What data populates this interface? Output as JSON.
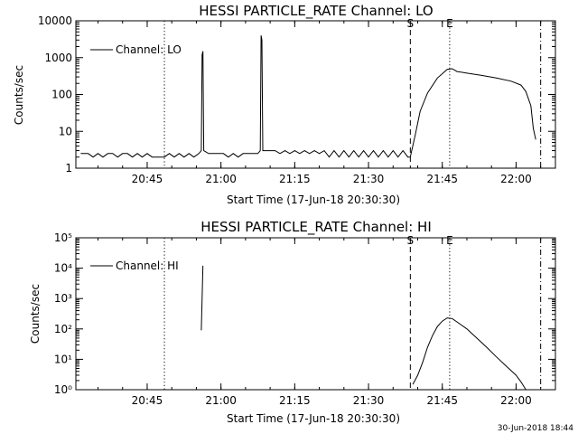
{
  "chart_data": [
    {
      "type": "line",
      "title": "HESSI PARTICLE_RATE Channel: LO",
      "xlabel": "Start Time (17-Jun-18 20:30:30)",
      "ylabel": "Counts/sec",
      "yscale": "log",
      "ylim": [
        1,
        10000
      ],
      "xlim": [
        "20:30:30",
        "22:08:00"
      ],
      "x_ticks": [
        "20:45",
        "21:00",
        "21:15",
        "21:30",
        "21:45",
        "22:00"
      ],
      "y_ticks": [
        "1",
        "10",
        "100",
        "1000",
        "10000"
      ],
      "legend": {
        "label": "Channel: LO",
        "position": "top-left"
      },
      "markers": [
        {
          "label": "",
          "time": "20:48:30",
          "style": "dotted"
        },
        {
          "label": "S",
          "time": "21:38:30",
          "style": "dashed"
        },
        {
          "label": "E",
          "time": "21:46:30",
          "style": "dotted"
        },
        {
          "label": "",
          "time": "22:05:00",
          "style": "dash-dot"
        }
      ],
      "series": [
        {
          "name": "Channel: LO",
          "points": [
            [
              "20:31:30",
              2.5
            ],
            [
              "20:33:00",
              2.5
            ],
            [
              "20:34:00",
              2
            ],
            [
              "20:35:00",
              2.5
            ],
            [
              "20:36:00",
              2
            ],
            [
              "20:37:00",
              2.5
            ],
            [
              "20:38:00",
              2.5
            ],
            [
              "20:39:00",
              2
            ],
            [
              "20:40:00",
              2.5
            ],
            [
              "20:41:00",
              2.5
            ],
            [
              "20:42:00",
              2
            ],
            [
              "20:43:00",
              2.5
            ],
            [
              "20:44:00",
              2
            ],
            [
              "20:45:00",
              2.5
            ],
            [
              "20:46:00",
              2
            ],
            [
              "20:47:00",
              2
            ],
            [
              "20:48:30",
              2
            ],
            [
              "20:49:30",
              2.5
            ],
            [
              "20:50:30",
              2
            ],
            [
              "20:51:30",
              2.5
            ],
            [
              "20:52:30",
              2
            ],
            [
              "20:53:30",
              2.5
            ],
            [
              "20:54:30",
              2
            ],
            [
              "20:55:30",
              2.5
            ],
            [
              "20:56:00",
              3
            ],
            [
              "20:56:10",
              1200
            ],
            [
              "20:56:20",
              1500
            ],
            [
              "20:56:30",
              3
            ],
            [
              "20:57:30",
              2.5
            ],
            [
              "20:58:30",
              2.5
            ],
            [
              "20:59:30",
              2.5
            ],
            [
              "21:00:30",
              2.5
            ],
            [
              "21:01:30",
              2
            ],
            [
              "21:02:30",
              2.5
            ],
            [
              "21:03:30",
              2
            ],
            [
              "21:04:30",
              2.5
            ],
            [
              "21:05:30",
              2.5
            ],
            [
              "21:06:30",
              2.5
            ],
            [
              "21:07:30",
              2.5
            ],
            [
              "21:08:00",
              3
            ],
            [
              "21:08:10",
              4000
            ],
            [
              "21:08:20",
              3000
            ],
            [
              "21:08:30",
              3
            ],
            [
              "21:09:30",
              3
            ],
            [
              "21:11:00",
              3
            ],
            [
              "21:12:00",
              2.5
            ],
            [
              "21:13:00",
              3
            ],
            [
              "21:14:00",
              2.5
            ],
            [
              "21:15:00",
              3
            ],
            [
              "21:16:00",
              2.5
            ],
            [
              "21:17:00",
              3
            ],
            [
              "21:18:00",
              2.5
            ],
            [
              "21:19:00",
              3
            ],
            [
              "21:20:00",
              2.5
            ],
            [
              "21:21:00",
              3
            ],
            [
              "21:22:00",
              2
            ],
            [
              "21:23:00",
              3
            ],
            [
              "21:24:00",
              2
            ],
            [
              "21:25:00",
              3
            ],
            [
              "21:26:00",
              2
            ],
            [
              "21:27:00",
              3
            ],
            [
              "21:28:00",
              2
            ],
            [
              "21:29:00",
              3
            ],
            [
              "21:30:00",
              2
            ],
            [
              "21:31:00",
              3
            ],
            [
              "21:32:00",
              2
            ],
            [
              "21:33:00",
              3
            ],
            [
              "21:34:00",
              2
            ],
            [
              "21:35:00",
              3
            ],
            [
              "21:36:00",
              2
            ],
            [
              "21:37:00",
              3
            ],
            [
              "21:38:00",
              2
            ],
            [
              "21:38:30",
              2
            ],
            [
              "21:39:30",
              8
            ],
            [
              "21:40:30",
              35
            ],
            [
              "21:42:00",
              110
            ],
            [
              "21:44:00",
              280
            ],
            [
              "21:46:00",
              480
            ],
            [
              "21:47:00",
              500
            ],
            [
              "21:48:00",
              420
            ],
            [
              "21:50:00",
              380
            ],
            [
              "21:53:00",
              330
            ],
            [
              "21:56:00",
              280
            ],
            [
              "21:59:00",
              230
            ],
            [
              "22:01:00",
              180
            ],
            [
              "22:02:00",
              120
            ],
            [
              "22:03:00",
              50
            ],
            [
              "22:03:30",
              12
            ],
            [
              "22:04:00",
              6
            ]
          ]
        }
      ]
    },
    {
      "type": "line",
      "title": "HESSI PARTICLE_RATE Channel: HI",
      "xlabel": "Start Time (17-Jun-18 20:30:30)",
      "ylabel": "Counts/sec",
      "yscale": "log",
      "ylim": [
        1,
        100000
      ],
      "xlim": [
        "20:30:30",
        "22:08:00"
      ],
      "x_ticks": [
        "20:45",
        "21:00",
        "21:15",
        "21:30",
        "21:45",
        "22:00"
      ],
      "y_ticks": [
        "10⁰",
        "10¹",
        "10²",
        "10³",
        "10⁴",
        "10⁵"
      ],
      "legend": {
        "label": "Channel: HI",
        "position": "top-left"
      },
      "markers": [
        {
          "label": "",
          "time": "20:48:30",
          "style": "dotted"
        },
        {
          "label": "S",
          "time": "21:38:30",
          "style": "dashed"
        },
        {
          "label": "E",
          "time": "21:46:30",
          "style": "dotted"
        },
        {
          "label": "",
          "time": "22:05:00",
          "style": "dash-dot"
        }
      ],
      "series": [
        {
          "name": "Channel: HI",
          "segments": [
            [
              [
                "20:56:00",
                90
              ],
              [
                "20:56:20",
                12000
              ]
            ],
            [
              [
                "21:39:00",
                1.5
              ],
              [
                "21:40:00",
                3
              ],
              [
                "21:41:00",
                8
              ],
              [
                "21:42:00",
                25
              ],
              [
                "21:43:00",
                60
              ],
              [
                "21:44:00",
                120
              ],
              [
                "21:45:00",
                180
              ],
              [
                "21:46:00",
                230
              ],
              [
                "21:47:00",
                220
              ],
              [
                "21:48:00",
                170
              ],
              [
                "21:50:00",
                100
              ],
              [
                "21:52:00",
                50
              ],
              [
                "21:54:00",
                25
              ],
              [
                "21:56:00",
                12
              ],
              [
                "21:58:00",
                6
              ],
              [
                "22:00:00",
                3
              ],
              [
                "22:01:00",
                1.8
              ],
              [
                "22:02:00",
                1
              ]
            ]
          ]
        }
      ]
    }
  ],
  "footer": {
    "timestamp": "30-Jun-2018 18:44"
  }
}
